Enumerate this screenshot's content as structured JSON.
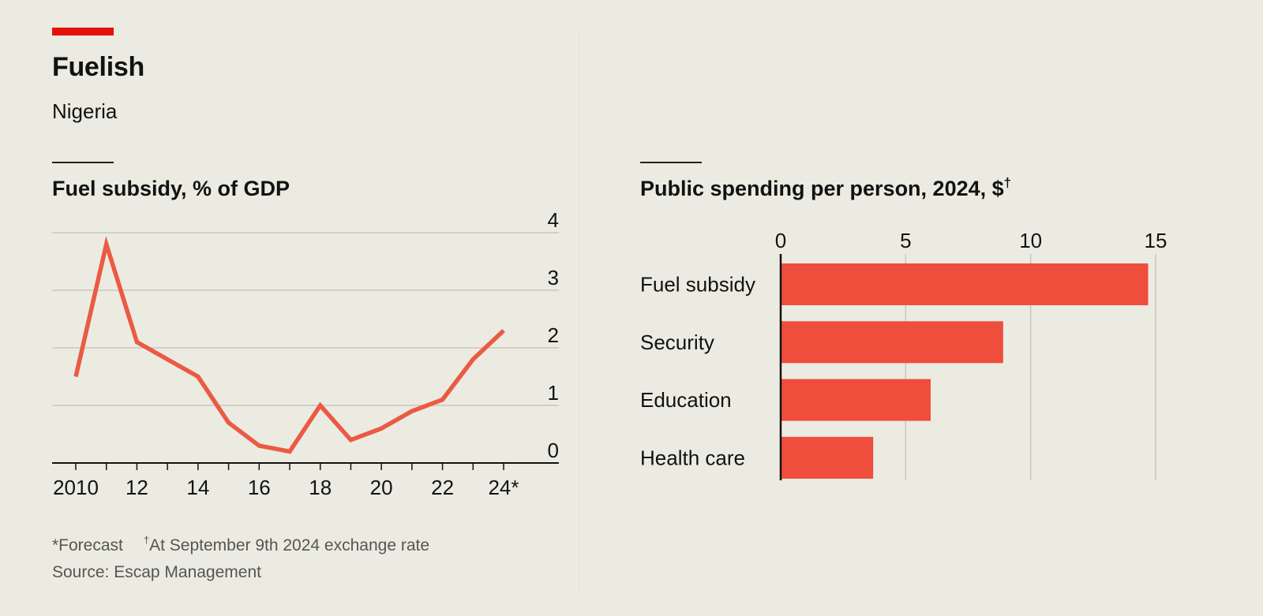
{
  "header": {
    "title": "Fuelish",
    "subtitle": "Nigeria",
    "accent_color": "#e3120b"
  },
  "chart_data": [
    {
      "type": "line",
      "title": "Fuel subsidy, % of GDP",
      "x": [
        2010,
        2011,
        2012,
        2013,
        2014,
        2015,
        2016,
        2017,
        2018,
        2019,
        2020,
        2021,
        2022,
        2023,
        2024
      ],
      "x_tick_labels": [
        {
          "x": 2010,
          "label": "2010"
        },
        {
          "x": 2012,
          "label": "12"
        },
        {
          "x": 2014,
          "label": "14"
        },
        {
          "x": 2016,
          "label": "16"
        },
        {
          "x": 2018,
          "label": "18"
        },
        {
          "x": 2020,
          "label": "20"
        },
        {
          "x": 2022,
          "label": "22"
        },
        {
          "x": 2024,
          "label": "24*"
        }
      ],
      "series": [
        {
          "values": [
            1.5,
            3.8,
            2.1,
            1.8,
            1.5,
            0.7,
            0.3,
            0.2,
            1.0,
            0.4,
            0.6,
            0.9,
            1.1,
            1.8,
            2.3
          ]
        }
      ],
      "ylim": [
        0,
        4
      ],
      "y_ticks": [
        0,
        1,
        2,
        3,
        4
      ],
      "grid": true,
      "y_axis_side": "right",
      "line_color": "#eb5a45"
    },
    {
      "type": "bar",
      "orientation": "horizontal",
      "title": "Public spending per person, 2024, $",
      "title_marker": "†",
      "categories": [
        "Fuel subsidy",
        "Security",
        "Education",
        "Health care"
      ],
      "values": [
        14.7,
        8.9,
        6.0,
        3.7
      ],
      "xlim": [
        0,
        15
      ],
      "x_ticks": [
        0,
        5,
        10,
        15
      ],
      "grid": true,
      "x_axis_side": "top",
      "bar_color": "#ef4e3c"
    }
  ],
  "footnotes": {
    "forecast": "*Forecast",
    "exchange_marker": "†",
    "exchange": "At September 9th 2024 exchange rate",
    "source": "Source: Escap Management"
  }
}
